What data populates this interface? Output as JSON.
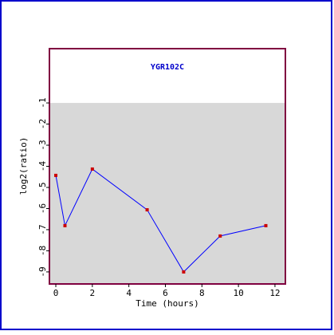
{
  "chart_data": {
    "type": "line",
    "title": "YGR102C",
    "xlabel": "Time (hours)",
    "ylabel": "log2(ratio)",
    "x": [
      0,
      0.5,
      2,
      5,
      7,
      9,
      11.5
    ],
    "series": [
      {
        "name": "YGR102C",
        "color": "#0000ff",
        "marker_color": "#cc0000",
        "values": [
          -4.43,
          -6.81,
          -4.13,
          -6.06,
          -9.0,
          -7.3,
          -6.81
        ]
      }
    ],
    "xlim": [
      -0.35,
      12.57
    ],
    "xticks": [
      0,
      2,
      4,
      6,
      8,
      10,
      12
    ],
    "ylim": [
      -9.57,
      1.57
    ],
    "yticks": [
      -9,
      -8,
      -7,
      -6,
      -5,
      -4,
      -3,
      -2,
      -1
    ],
    "shade_top": -1,
    "shade_color": "#d8d8d8"
  }
}
